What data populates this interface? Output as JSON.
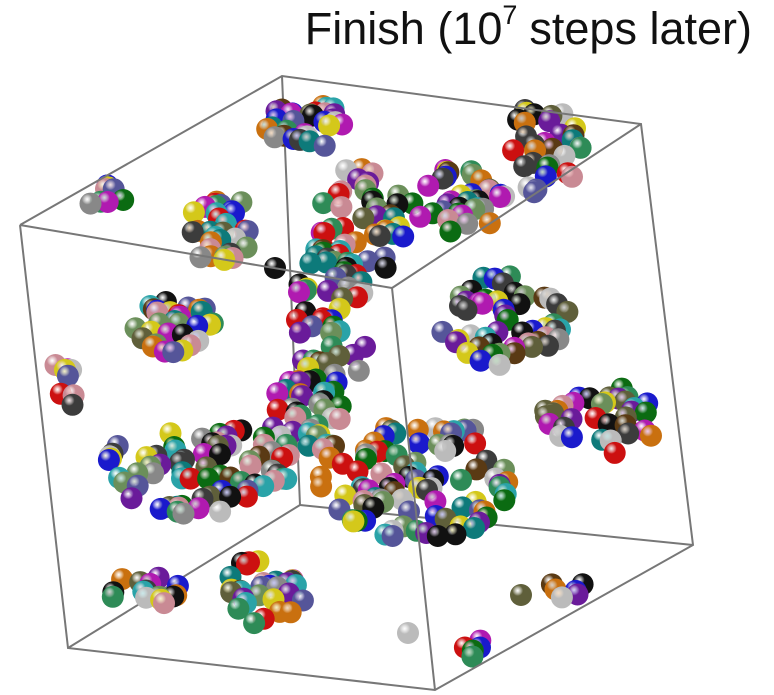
{
  "header": {
    "title": {
      "text": "Finish (10",
      "superscript": "7",
      "tail": "steps later)"
    }
  }
}
